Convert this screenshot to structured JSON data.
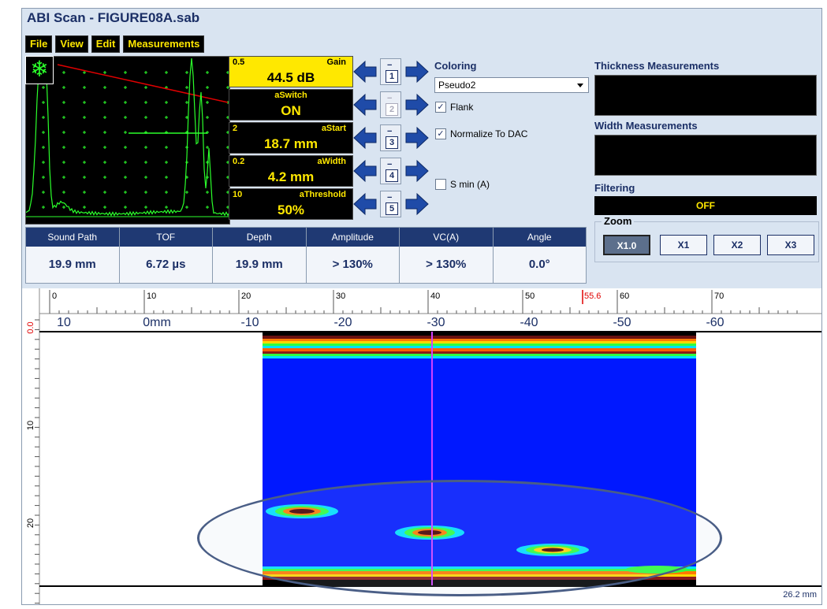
{
  "window": {
    "title": "ABI Scan - FIGURE08A.sab"
  },
  "menu": [
    {
      "label": "File"
    },
    {
      "label": "View"
    },
    {
      "label": "Edit"
    },
    {
      "label": "Measurements"
    }
  ],
  "ascan": {
    "freeze_icon": "snowflake-icon",
    "freeze_symbol": "❄"
  },
  "params": [
    {
      "step": "0.5",
      "name": "Gain",
      "value": "44.5 dB",
      "active": true,
      "slot": "1"
    },
    {
      "step": "",
      "name": "aSwitch",
      "value": "ON",
      "active": false,
      "slot": "2"
    },
    {
      "step": "2",
      "name": "aStart",
      "value": "18.7 mm",
      "active": false,
      "slot": "3"
    },
    {
      "step": "0.2",
      "name": "aWidth",
      "value": "4.2 mm",
      "active": false,
      "slot": "4"
    },
    {
      "step": "10",
      "name": "aThreshold",
      "value": "50%",
      "active": false,
      "slot": "5"
    }
  ],
  "coloring": {
    "label": "Coloring",
    "selected": "Pseudo2",
    "flank": {
      "label": "Flank",
      "checked": true
    },
    "normalize": {
      "label": "Normalize To DAC",
      "checked": true
    },
    "smin": {
      "label": "S min (A)",
      "checked": false
    }
  },
  "right_panel": {
    "thickness_label": "Thickness Measurements",
    "width_label": "Width Measurements",
    "filtering_label": "Filtering",
    "filtering_value": "OFF"
  },
  "zoom": {
    "label": "Zoom",
    "buttons": [
      {
        "label": "X1.0",
        "selected": true
      },
      {
        "label": "X1"
      },
      {
        "label": "X2"
      },
      {
        "label": "X3"
      }
    ]
  },
  "measurements": {
    "headers": [
      "Sound Path",
      "TOF",
      "Depth",
      "Amplitude",
      "VC(A)",
      "Angle"
    ],
    "values": [
      "19.9 mm",
      "6.72 µs",
      "19.9 mm",
      "> 130%",
      "> 130%",
      "0.0°"
    ]
  },
  "scan": {
    "top_ruler_labels": [
      "0",
      "10",
      "20",
      "30",
      "40",
      "50",
      "60",
      "70"
    ],
    "cursor_label": "55.6",
    "position_labels": [
      "10",
      "0mm",
      "-10",
      "-20",
      "-30",
      "-40",
      "-50",
      "-60"
    ],
    "depth_labels": [
      "0.0",
      "10",
      "20"
    ],
    "depth_end": "26.2 mm"
  },
  "colors": {
    "accent": "#1b2f66",
    "header_blue": "#1f3973",
    "panel_bg": "#d9e4f1",
    "yellow": "#ffe800",
    "signal_green": "#2bff2b",
    "scan_blue": "#0018ff",
    "cursor_magenta": "#d040ff"
  }
}
